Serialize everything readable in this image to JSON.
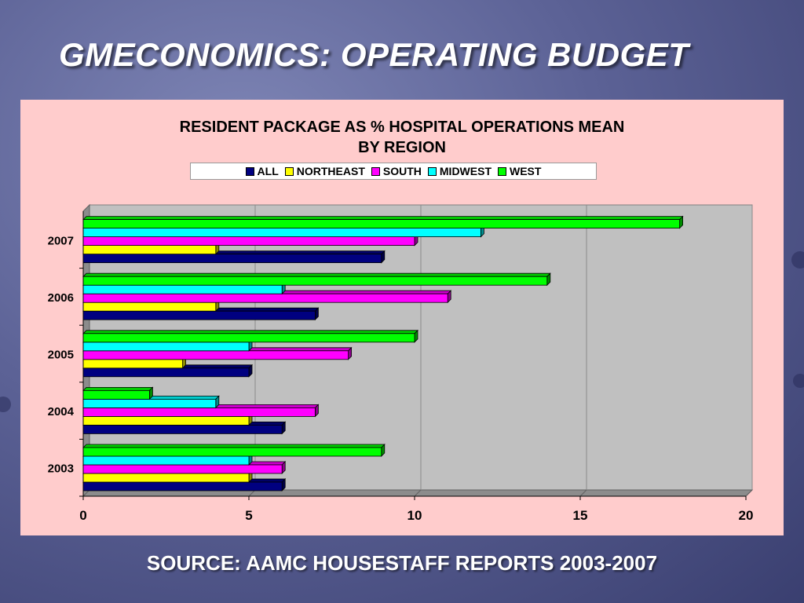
{
  "slide": {
    "title": "GMECONOMICS:  OPERATING BUDGET",
    "source": "SOURCE:  AAMC HOUSESTAFF REPORTS 2003-2007"
  },
  "colors": {
    "slide_background": "#5c6296",
    "chart_background": "#ffcccc",
    "plot_background": "#c0c0c0"
  },
  "chart_data": {
    "type": "bar",
    "orientation": "horizontal",
    "title_lines": [
      "RESIDENT PACKAGE AS % HOSPITAL OPERATIONS MEAN",
      "BY REGION"
    ],
    "categories": [
      "2003",
      "2004",
      "2005",
      "2006",
      "2007"
    ],
    "series": [
      {
        "name": "ALL",
        "color": "#000080",
        "values": [
          6,
          6,
          5,
          7,
          9
        ]
      },
      {
        "name": "NORTHEAST",
        "color": "#ffff00",
        "values": [
          5,
          5,
          3,
          4,
          4
        ]
      },
      {
        "name": "SOUTH",
        "color": "#ff00ff",
        "values": [
          6,
          7,
          8,
          11,
          10
        ]
      },
      {
        "name": "MIDWEST",
        "color": "#00ffff",
        "values": [
          5,
          4,
          5,
          6,
          12
        ]
      },
      {
        "name": "WEST",
        "color": "#00ff00",
        "values": [
          9,
          2,
          10,
          14,
          18
        ]
      }
    ],
    "xlim": [
      0,
      20
    ],
    "xticks": [
      "0",
      "5",
      "10",
      "15",
      "20"
    ],
    "xlabel": "",
    "ylabel": "",
    "grid": true,
    "legend_position": "top"
  }
}
